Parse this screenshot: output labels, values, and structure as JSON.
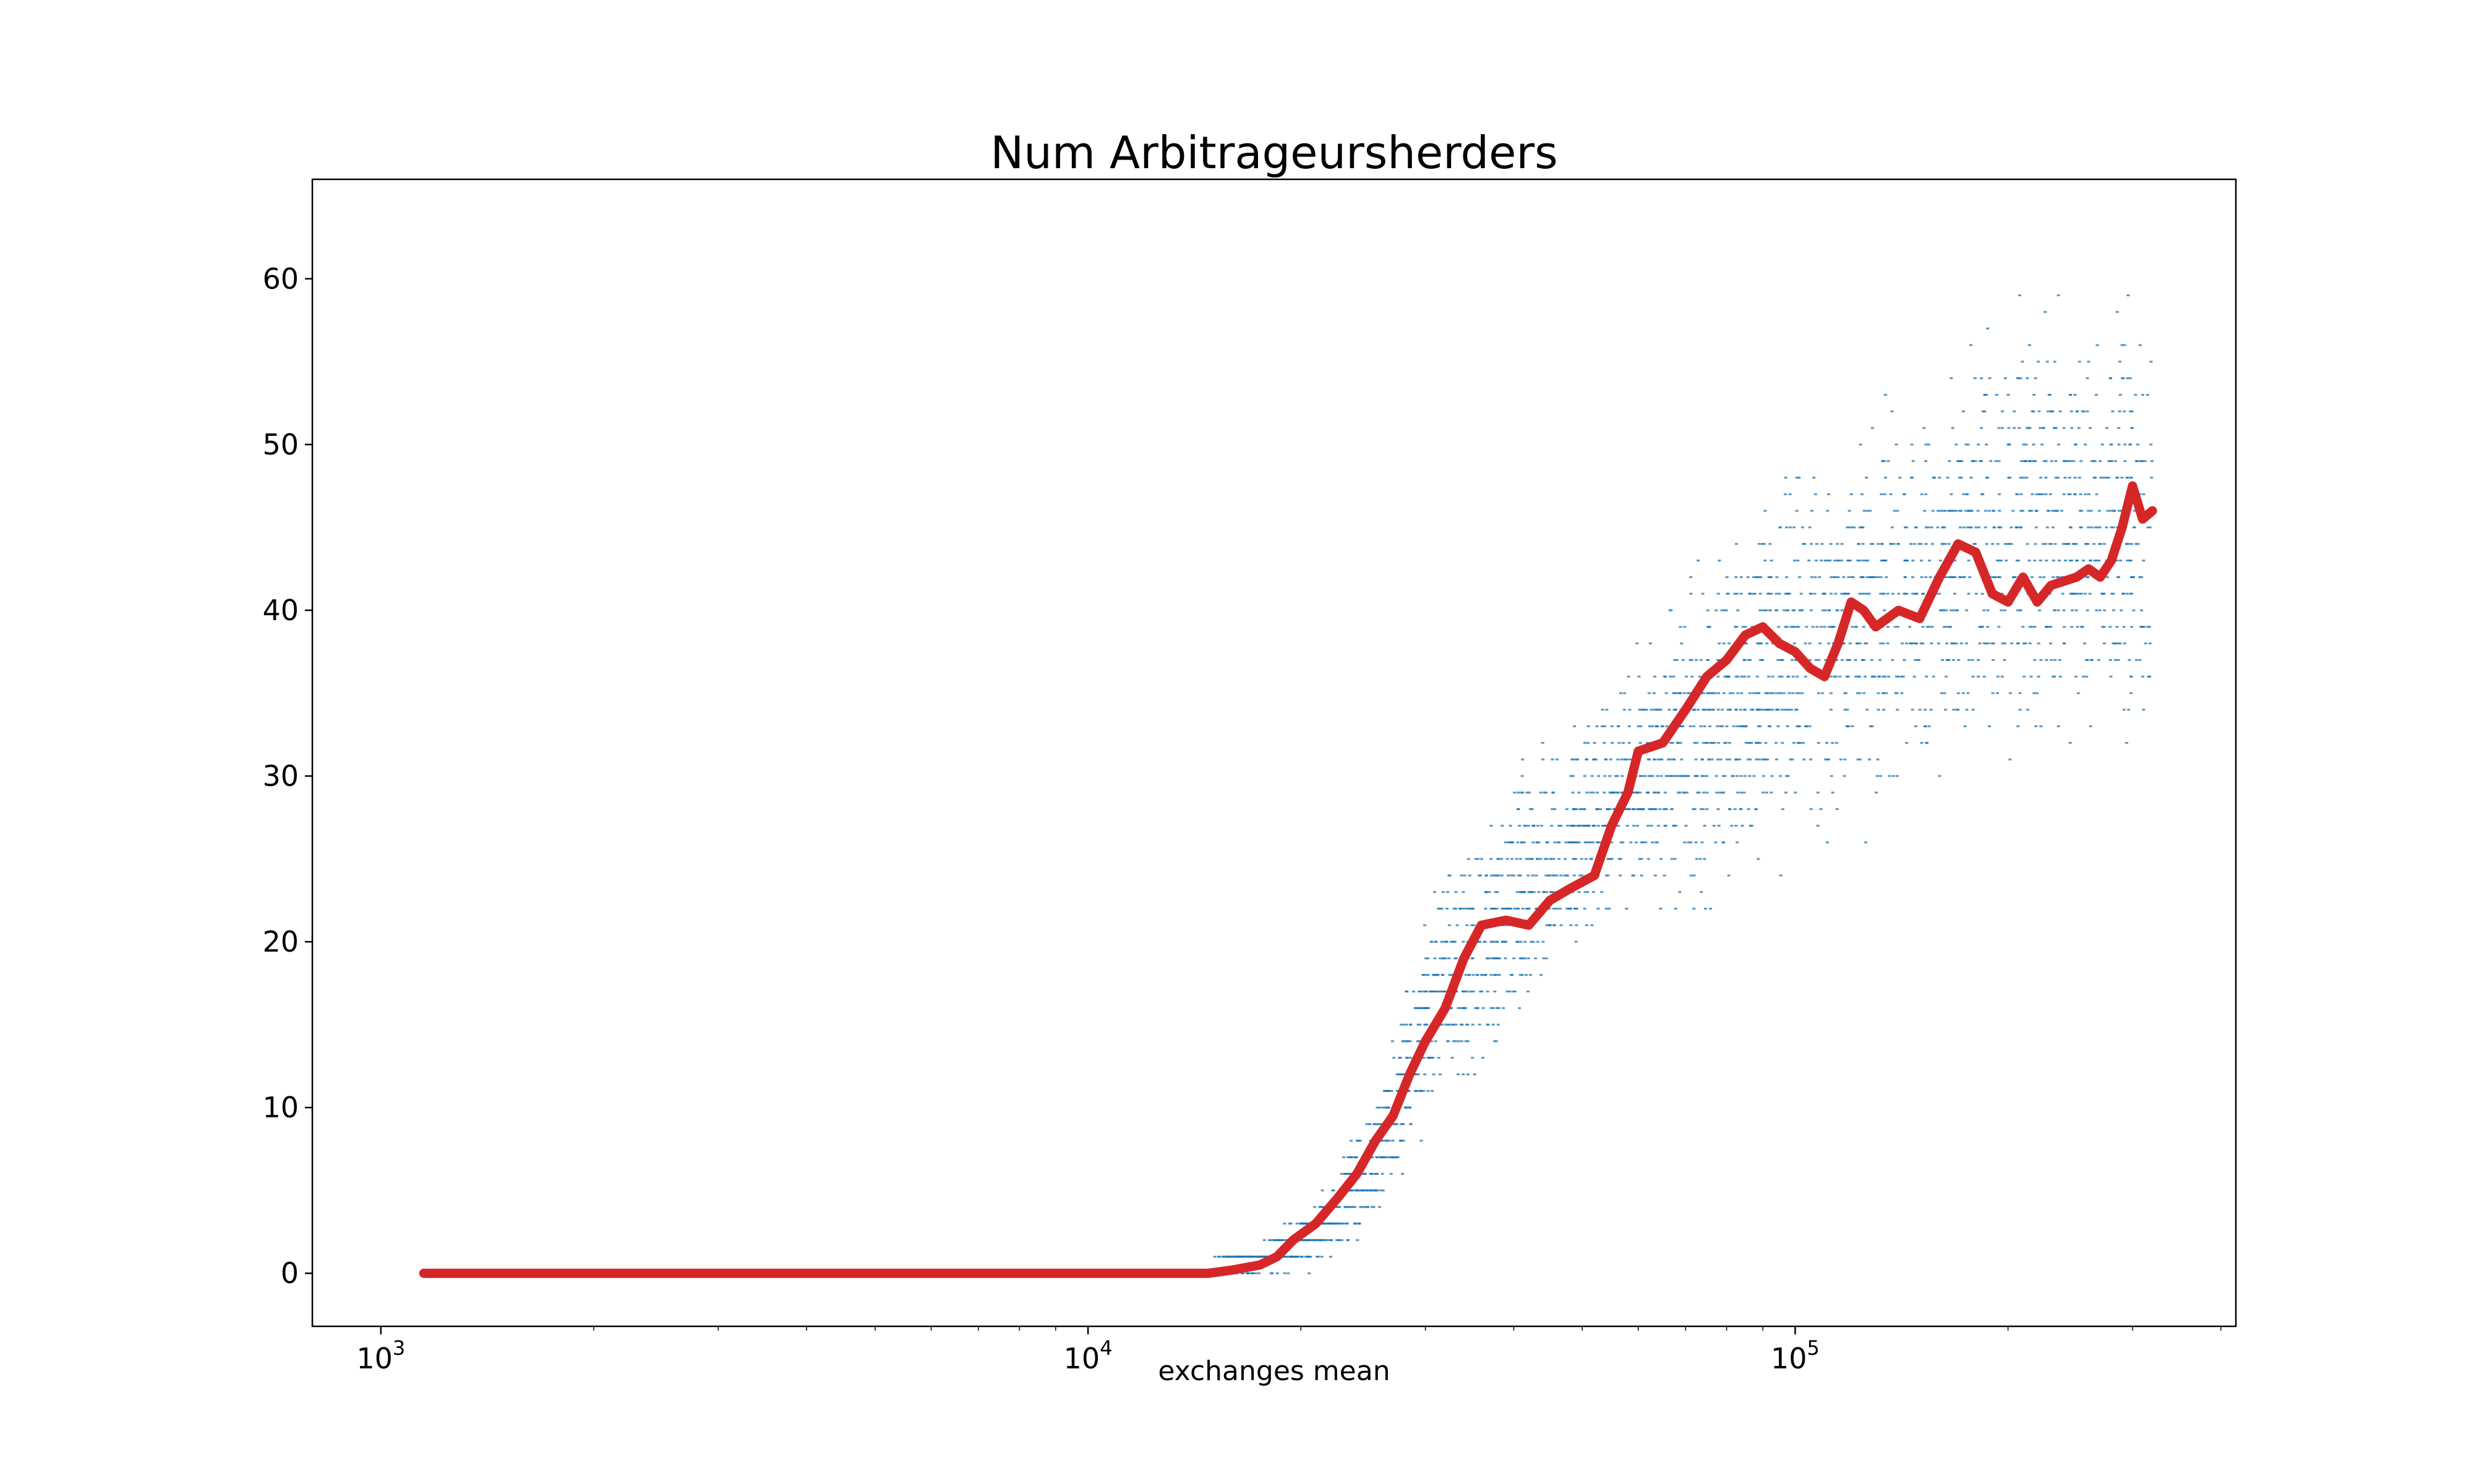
{
  "chart_data": {
    "type": "scatter",
    "title": "Num Arbitrageursherders",
    "xlabel": "exchanges mean",
    "ylabel": "",
    "xscale": "log",
    "xlim": [
      800,
      420000
    ],
    "ylim": [
      -3.2,
      66
    ],
    "x_ticks": [
      {
        "value": 1000,
        "base": "10",
        "exp": "3"
      },
      {
        "value": 10000,
        "base": "10",
        "exp": "4"
      },
      {
        "value": 100000,
        "base": "10",
        "exp": "5"
      }
    ],
    "y_ticks": [
      "0",
      "10",
      "20",
      "30",
      "40",
      "50",
      "60"
    ],
    "grid": false,
    "legend": "none",
    "colors": {
      "scatter": "#1f77b4",
      "trend": "#d62728"
    },
    "series": [
      {
        "kind": "scatter",
        "x_range": [
          14000,
          320000
        ],
        "band_points": [
          {
            "x": 14000,
            "y_min": 0,
            "y_max": 0
          },
          {
            "x": 18000,
            "y_min": 0,
            "y_max": 2
          },
          {
            "x": 22000,
            "y_min": 0,
            "y_max": 6
          },
          {
            "x": 26000,
            "y_min": 2,
            "y_max": 13
          },
          {
            "x": 30000,
            "y_min": 7,
            "y_max": 24
          },
          {
            "x": 40000,
            "y_min": 12,
            "y_max": 32
          },
          {
            "x": 55000,
            "y_min": 20,
            "y_max": 37
          },
          {
            "x": 75000,
            "y_min": 20,
            "y_max": 45
          },
          {
            "x": 100000,
            "y_min": 23,
            "y_max": 52
          },
          {
            "x": 150000,
            "y_min": 27,
            "y_max": 56
          },
          {
            "x": 200000,
            "y_min": 29,
            "y_max": 62
          },
          {
            "x": 320000,
            "y_min": 27,
            "y_max": 62
          }
        ]
      },
      {
        "kind": "line",
        "points": [
          [
            1150,
            0
          ],
          [
            3000,
            0
          ],
          [
            8000,
            0
          ],
          [
            14800,
            0
          ],
          [
            16000,
            0.2
          ],
          [
            17500,
            0.5
          ],
          [
            18500,
            1
          ],
          [
            19500,
            2
          ],
          [
            21000,
            3
          ],
          [
            22500,
            4.5
          ],
          [
            24000,
            6
          ],
          [
            25500,
            8
          ],
          [
            27000,
            9.5
          ],
          [
            28500,
            12
          ],
          [
            30000,
            14
          ],
          [
            32000,
            16
          ],
          [
            34000,
            19
          ],
          [
            36000,
            21
          ],
          [
            39000,
            21.3
          ],
          [
            42000,
            21
          ],
          [
            45000,
            22.5
          ],
          [
            48000,
            23.2
          ],
          [
            52000,
            24
          ],
          [
            55000,
            27
          ],
          [
            58000,
            29
          ],
          [
            60000,
            31.5
          ],
          [
            65000,
            32
          ],
          [
            70000,
            34
          ],
          [
            75000,
            36
          ],
          [
            80000,
            37
          ],
          [
            85000,
            38.5
          ],
          [
            90000,
            39
          ],
          [
            95000,
            38
          ],
          [
            100000,
            37.5
          ],
          [
            105000,
            36.5
          ],
          [
            110000,
            36
          ],
          [
            115000,
            38
          ],
          [
            120000,
            40.5
          ],
          [
            125000,
            40
          ],
          [
            130000,
            39
          ],
          [
            140000,
            40
          ],
          [
            150000,
            39.5
          ],
          [
            160000,
            42
          ],
          [
            170000,
            44
          ],
          [
            180000,
            43.5
          ],
          [
            190000,
            41
          ],
          [
            200000,
            40.5
          ],
          [
            210000,
            42
          ],
          [
            220000,
            40.5
          ],
          [
            230000,
            41.5
          ],
          [
            250000,
            42
          ],
          [
            260000,
            42.5
          ],
          [
            270000,
            42
          ],
          [
            280000,
            43
          ],
          [
            290000,
            45
          ],
          [
            300000,
            47.5
          ],
          [
            310000,
            45.5
          ],
          [
            320000,
            46
          ]
        ]
      }
    ]
  }
}
